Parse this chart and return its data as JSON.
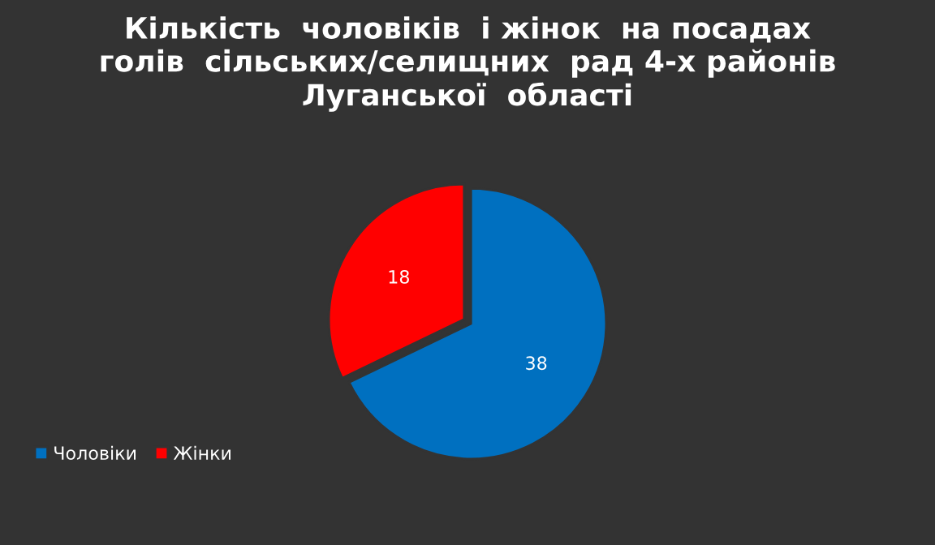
{
  "chart_data": {
    "type": "pie",
    "title": "Кількість  чоловіків  і жінок  на посадах\nголів  сільських/селищних  рад 4-х районів\nЛуганської  області",
    "categories": [
      "Чоловіки",
      "Жінки"
    ],
    "values": [
      38,
      18
    ],
    "colors": [
      "#0070c0",
      "#ff0000"
    ],
    "data_labels": true,
    "legend": "bottom left"
  }
}
